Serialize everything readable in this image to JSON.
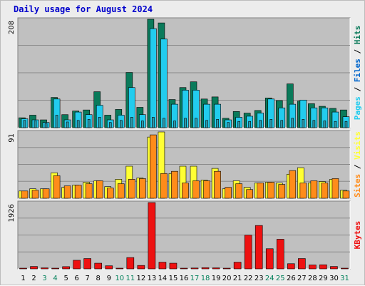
{
  "chart_data": {
    "type": "bar",
    "title": "Daily usage for August 2024",
    "days": [
      "1",
      "2",
      "3",
      "4",
      "5",
      "6",
      "7",
      "8",
      "9",
      "10",
      "11",
      "12",
      "13",
      "14",
      "15",
      "16",
      "17",
      "18",
      "19",
      "20",
      "21",
      "22",
      "23",
      "24",
      "25",
      "26",
      "27",
      "28",
      "29",
      "30",
      "31"
    ],
    "weekend_days": [
      3,
      4,
      10,
      11,
      17,
      18,
      24,
      25,
      31
    ],
    "colors": {
      "title": "#0000cc",
      "hits": "#0a7a5a",
      "files": "#22ccee",
      "pages": "#3399aa",
      "visits": "#ffff33",
      "sites": "#ff8c1a",
      "kbytes": "#ee1111",
      "weekday_label": "#000000",
      "weekend_label": "#00805a",
      "plot_bg": "#c0c0c0",
      "frame_bg": "#ececec"
    },
    "panels": [
      {
        "name": "hits-files-pages",
        "ymax": 208,
        "ymax_label": "208",
        "right_label": [
          {
            "text": "Pages",
            "color": "#22ccee"
          },
          {
            "text": " / ",
            "color": "#000000"
          },
          {
            "text": "Files",
            "color": "#0066cc"
          },
          {
            "text": " / ",
            "color": "#000000"
          },
          {
            "text": "Hits",
            "color": "#0a7a5a"
          }
        ],
        "series": [
          {
            "name": "Hits",
            "color": "#0a7a5a",
            "values": [
              19,
              24,
              15,
              58,
              25,
              32,
              34,
              69,
              24,
              35,
              106,
              39,
              208,
              201,
              54,
              77,
              88,
              55,
              59,
              18,
              31,
              28,
              33,
              57,
              52,
              84,
              51,
              46,
              41,
              37,
              34
            ]
          },
          {
            "name": "Files",
            "color": "#22ccee",
            "values": [
              17,
              15,
              10,
              55,
              15,
              30,
              25,
              43,
              15,
              24,
              77,
              25,
              190,
              170,
              45,
              72,
              72,
              45,
              45,
              15,
              20,
              22,
              28,
              55,
              38,
              45,
              53,
              38,
              38,
              30,
              21
            ]
          },
          {
            "name": "Pages",
            "color": "#3399aa",
            "values": [
              14,
              13,
              8,
              24,
              11,
              14,
              16,
              20,
              10,
              14,
              20,
              13,
              20,
              18,
              13,
              18,
              18,
              14,
              16,
              10,
              12,
              12,
              14,
              16,
              14,
              18,
              16,
              14,
              13,
              12,
              12
            ]
          }
        ]
      },
      {
        "name": "visits-sites",
        "ymax": 91,
        "ymax_label": "91",
        "right_label": [
          {
            "text": "Sites",
            "color": "#ff8c1a"
          },
          {
            "text": " / ",
            "color": "#000000"
          },
          {
            "text": "Visits",
            "color": "#ffff33"
          }
        ],
        "series": [
          {
            "name": "Visits",
            "color": "#ffff33",
            "values": [
              10,
              13,
              13,
              35,
              15,
              18,
              22,
              24,
              16,
              26,
              44,
              28,
              84,
              91,
              34,
              44,
              44,
              25,
              41,
              13,
              24,
              15,
              21,
              22,
              21,
              33,
              42,
              21,
              23,
              26,
              11
            ]
          },
          {
            "name": "Sites",
            "color": "#ff8c1a",
            "values": [
              10,
              11,
              13,
              31,
              17,
              18,
              20,
              24,
              14,
              20,
              26,
              27,
              87,
              34,
              37,
              21,
              24,
              24,
              37,
              15,
              20,
              12,
              21,
              22,
              19,
              38,
              21,
              24,
              21,
              27,
              10
            ]
          }
        ]
      },
      {
        "name": "kbytes",
        "ymax": 1926,
        "ymax_label": "1926",
        "right_label": [
          {
            "text": "KBytes",
            "color": "#ee1111"
          }
        ],
        "series": [
          {
            "name": "KBytes",
            "color": "#ee1111",
            "values": [
              10,
              70,
              30,
              20,
              65,
              250,
              300,
              165,
              90,
              20,
              330,
              100,
              1926,
              195,
              165,
              5,
              25,
              35,
              30,
              10,
              195,
              980,
              1260,
              585,
              860,
              150,
              300,
              115,
              120,
              70,
              15
            ]
          }
        ]
      }
    ]
  }
}
